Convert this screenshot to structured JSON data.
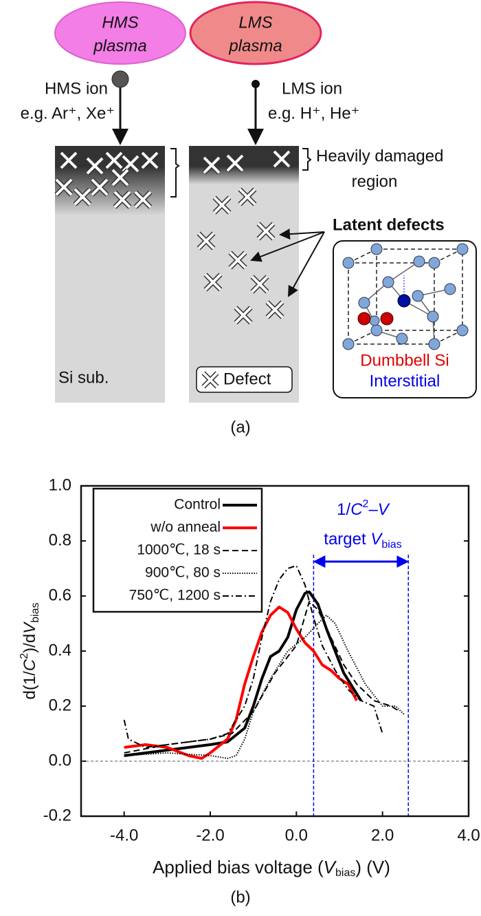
{
  "diagram": {
    "hms_plasma": [
      "HMS",
      "plasma"
    ],
    "lms_plasma": [
      "LMS",
      "plasma"
    ],
    "hms_ion": [
      "HMS ion",
      "e.g. Ar⁺, Xe⁺"
    ],
    "lms_ion": [
      "LMS ion",
      "e.g. H⁺, He⁺"
    ],
    "damaged_region": [
      "Heavily damaged",
      "region"
    ],
    "latent_defects": "Latent defects",
    "crystal": [
      "Dumbbell Si",
      "Interstitial"
    ],
    "substrate": "Si sub.",
    "defect_legend": "Defect"
  },
  "captions": [
    "(a)",
    "(b)"
  ],
  "chart_data": {
    "type": "line",
    "xlabel": [
      "Applied bias voltage (",
      "V",
      "bias",
      ") (V)"
    ],
    "ylabel": [
      "d(1/",
      "C",
      "2",
      ")/d",
      "V",
      "bias"
    ],
    "annotation": {
      "line1": [
        "1/",
        "C",
        "2",
        "–",
        "V"
      ],
      "line2": [
        "target ",
        "V",
        "bias"
      ],
      "range": [
        0.4,
        2.6
      ],
      "color": "#0000ee"
    },
    "xlim": [
      -5,
      4
    ],
    "ylim": [
      -0.2,
      1.0
    ],
    "xticks": [
      {
        "value": -4,
        "label": "-4.0"
      },
      {
        "value": -2,
        "label": "-2.0"
      },
      {
        "value": 0,
        "label": "0.0"
      },
      {
        "value": 2,
        "label": "2.0"
      },
      {
        "value": 4,
        "label": "4.0"
      }
    ],
    "yticks": [
      -0.2,
      {
        "value": 0,
        "label": "0.0"
      },
      0.2,
      0.4,
      0.6,
      0.8,
      {
        "value": 1,
        "label": "1.0"
      }
    ],
    "zero_line": true,
    "legend": "upper left",
    "series": [
      {
        "name": "Control",
        "color": "#000000",
        "style": "solid",
        "width": 4,
        "x": [
          -4,
          -3,
          -2,
          -1.6,
          -1.2,
          -1,
          -0.8,
          -0.6,
          -0.4,
          -0.2,
          0,
          0.2,
          0.3,
          0.5,
          0.7,
          0.9,
          1.1,
          1.3,
          1.5
        ],
        "values": [
          0.02,
          0.04,
          0.06,
          0.07,
          0.12,
          0.2,
          0.3,
          0.38,
          0.4,
          0.45,
          0.55,
          0.61,
          0.615,
          0.57,
          0.48,
          0.4,
          0.32,
          0.27,
          0.22
        ]
      },
      {
        "name": "w/o anneal",
        "color": "#ff0000",
        "style": "solid",
        "width": 4,
        "x": [
          -4,
          -3.5,
          -3,
          -2.5,
          -2.2,
          -2,
          -1.6,
          -1.4,
          -1.2,
          -1,
          -0.8,
          -0.6,
          -0.4,
          -0.2,
          0,
          0.2,
          0.4,
          0.6,
          0.8,
          1,
          1.2,
          1.4
        ],
        "values": [
          0.05,
          0.06,
          0.05,
          0.02,
          0.01,
          0.03,
          0.08,
          0.15,
          0.28,
          0.38,
          0.47,
          0.53,
          0.56,
          0.54,
          0.48,
          0.43,
          0.4,
          0.35,
          0.33,
          0.3,
          0.28,
          0.22
        ]
      },
      {
        "name": "1000℃, 18 s",
        "color": "#000000",
        "style": "dashed",
        "width": 2,
        "x": [
          -4,
          -3,
          -2,
          -1.5,
          -1,
          -0.5,
          -0.2,
          0,
          0.3,
          0.5,
          0.8,
          1.1,
          1.4,
          1.8,
          2.2,
          2.4
        ],
        "values": [
          0.03,
          0.06,
          0.08,
          0.1,
          0.18,
          0.32,
          0.38,
          0.42,
          0.58,
          0.55,
          0.45,
          0.35,
          0.28,
          0.22,
          0.2,
          0.18
        ]
      },
      {
        "name": "900℃, 80 s",
        "color": "#000000",
        "style": "dotted",
        "width": 2,
        "x": [
          -4,
          -3,
          -2,
          -1.6,
          -1.4,
          -1.2,
          -1,
          -0.6,
          -0.2,
          0.2,
          0.5,
          0.7,
          0.9,
          1.2,
          1.6,
          2,
          2.3,
          2.5
        ],
        "values": [
          0.02,
          0.03,
          0.02,
          0.01,
          0.02,
          0.08,
          0.18,
          0.3,
          0.4,
          0.45,
          0.5,
          0.53,
          0.5,
          0.4,
          0.28,
          0.2,
          0.2,
          0.17
        ]
      },
      {
        "name": "750℃, 1200 s",
        "color": "#000000",
        "style": "dashdot",
        "width": 2,
        "x": [
          -4,
          -3.9,
          -3.5,
          -3,
          -2,
          -1.6,
          -1.2,
          -1,
          -0.8,
          -0.6,
          -0.4,
          -0.2,
          0,
          0.2,
          0.4,
          0.6,
          0.9,
          1.2,
          1.5,
          1.8,
          2
        ],
        "values": [
          0.15,
          0.08,
          0.05,
          0.06,
          0.08,
          0.1,
          0.2,
          0.3,
          0.45,
          0.58,
          0.66,
          0.7,
          0.71,
          0.64,
          0.52,
          0.42,
          0.33,
          0.26,
          0.22,
          0.2,
          0.1
        ]
      }
    ]
  }
}
